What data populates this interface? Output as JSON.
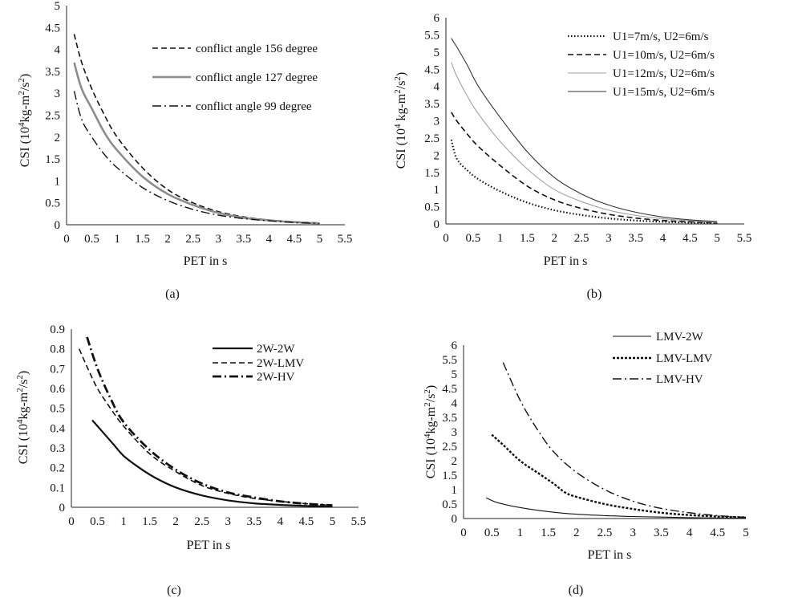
{
  "chart_data": [
    {
      "type": "line",
      "panel_label": "(a)",
      "xlabel": "PET in s",
      "ylabel": "CSI (10⁴kg-m²/s²)",
      "xlim": [
        0,
        5.5
      ],
      "ylim": [
        0,
        5
      ],
      "xticks": [
        "0",
        "0.5",
        "1",
        "1.5",
        "2",
        "2.5",
        "3",
        "3.5",
        "4",
        "4.5",
        "5",
        "5.5"
      ],
      "yticks": [
        "0",
        "0.5",
        "1",
        "1.5",
        "2",
        "2.5",
        "3",
        "3.5",
        "4",
        "4.5",
        "5"
      ],
      "grid": false,
      "legend_position": "top-right",
      "series": [
        {
          "name": "conflict angle 156 degree",
          "style": "dashed",
          "color": "#111111",
          "x": [
            0.15,
            0.3,
            0.5,
            0.75,
            1,
            1.5,
            2,
            2.5,
            3,
            3.5,
            4,
            4.5,
            5
          ],
          "y": [
            4.35,
            3.7,
            3.1,
            2.5,
            2.0,
            1.3,
            0.8,
            0.5,
            0.3,
            0.18,
            0.11,
            0.07,
            0.04
          ]
        },
        {
          "name": "conflict angle 127 degree",
          "style": "solid-gray",
          "color": "#8c8c8c",
          "x": [
            0.15,
            0.3,
            0.5,
            0.75,
            1,
            1.5,
            2,
            2.5,
            3,
            3.5,
            4,
            4.5,
            5
          ],
          "y": [
            3.7,
            3.1,
            2.65,
            2.1,
            1.7,
            1.1,
            0.7,
            0.45,
            0.27,
            0.16,
            0.1,
            0.06,
            0.03
          ]
        },
        {
          "name": "conflict angle 99 degree",
          "style": "dashdot",
          "color": "#111111",
          "x": [
            0.15,
            0.3,
            0.5,
            0.75,
            1,
            1.5,
            2,
            2.5,
            3,
            3.5,
            4,
            4.5,
            5
          ],
          "y": [
            3.05,
            2.4,
            2.0,
            1.6,
            1.3,
            0.85,
            0.55,
            0.35,
            0.22,
            0.14,
            0.09,
            0.05,
            0.03
          ]
        }
      ]
    },
    {
      "type": "line",
      "panel_label": "(b)",
      "xlabel": "PET in s",
      "ylabel": "CSI (10⁴ kg-m²/s²)",
      "xlim": [
        0,
        5.5
      ],
      "ylim": [
        0,
        6
      ],
      "xticks": [
        "0",
        "0.5",
        "1",
        "1.5",
        "2",
        "2.5",
        "3",
        "3.5",
        "4",
        "4.5",
        "5",
        "5.5"
      ],
      "yticks": [
        "0",
        "0.5",
        "1",
        "1.5",
        "2",
        "2.5",
        "3",
        "3.5",
        "4",
        "4.5",
        "5",
        "5.5",
        "6"
      ],
      "grid": false,
      "legend_position": "top-right",
      "series": [
        {
          "name": "U1=7m/s, U2=6m/s",
          "style": "dotted",
          "color": "#111111",
          "x": [
            0.1,
            0.2,
            0.4,
            0.6,
            1,
            1.5,
            2,
            2.5,
            3,
            3.5,
            4,
            4.5,
            5
          ],
          "y": [
            2.45,
            1.9,
            1.55,
            1.3,
            0.95,
            0.62,
            0.4,
            0.26,
            0.16,
            0.1,
            0.06,
            0.04,
            0.02
          ]
        },
        {
          "name": "U1=10m/s, U2=6m/s",
          "style": "dashed",
          "color": "#111111",
          "x": [
            0.1,
            0.2,
            0.4,
            0.6,
            1,
            1.5,
            2,
            2.5,
            3,
            3.5,
            4,
            4.5,
            5
          ],
          "y": [
            3.25,
            3.0,
            2.6,
            2.25,
            1.7,
            1.1,
            0.7,
            0.45,
            0.28,
            0.17,
            0.1,
            0.06,
            0.03
          ]
        },
        {
          "name": "U1=12m/s, U2=6m/s",
          "style": "solid-light",
          "color": "#a0a0a0",
          "x": [
            0.1,
            0.2,
            0.4,
            0.6,
            1,
            1.5,
            2,
            2.5,
            3,
            3.5,
            4,
            4.5,
            5
          ],
          "y": [
            4.7,
            4.3,
            3.7,
            3.2,
            2.4,
            1.6,
            1.0,
            0.65,
            0.4,
            0.25,
            0.15,
            0.09,
            0.05
          ]
        },
        {
          "name": "U1=15m/s, U2=6m/s",
          "style": "solid-thin",
          "color": "#333333",
          "x": [
            0.1,
            0.2,
            0.4,
            0.6,
            1,
            1.5,
            2,
            2.5,
            3,
            3.5,
            4,
            4.5,
            5
          ],
          "y": [
            5.4,
            5.15,
            4.6,
            4.0,
            3.1,
            2.1,
            1.35,
            0.87,
            0.55,
            0.34,
            0.2,
            0.12,
            0.07
          ]
        }
      ]
    },
    {
      "type": "line",
      "panel_label": "(c)",
      "xlabel": "PET in s",
      "ylabel": "CSI (10⁴kg-m²/s²)",
      "xlim": [
        0,
        5.5
      ],
      "ylim": [
        0,
        0.9
      ],
      "xticks": [
        "0",
        "0.5",
        "1",
        "1.5",
        "2",
        "2.5",
        "3",
        "3.5",
        "4",
        "4.5",
        "5",
        "5.5"
      ],
      "yticks": [
        "0",
        "0.1",
        "0.2",
        "0.3",
        "0.4",
        "0.5",
        "0.6",
        "0.7",
        "0.8",
        "0.9"
      ],
      "grid": false,
      "legend_position": "top-right",
      "series": [
        {
          "name": "2W-2W",
          "style": "solid-thick",
          "color": "#111111",
          "x": [
            0.4,
            0.6,
            0.8,
            1,
            1.3,
            1.6,
            2,
            2.5,
            3,
            3.5,
            4,
            4.5,
            5
          ],
          "y": [
            0.44,
            0.38,
            0.32,
            0.26,
            0.2,
            0.15,
            0.1,
            0.06,
            0.035,
            0.02,
            0.012,
            0.007,
            0.004
          ]
        },
        {
          "name": "2W-LMV",
          "style": "dashed",
          "color": "#111111",
          "x": [
            0.15,
            0.3,
            0.5,
            0.75,
            1,
            1.5,
            2,
            2.5,
            3,
            3.5,
            4,
            4.5,
            5
          ],
          "y": [
            0.8,
            0.71,
            0.6,
            0.5,
            0.41,
            0.27,
            0.18,
            0.11,
            0.07,
            0.045,
            0.03,
            0.018,
            0.01
          ]
        },
        {
          "name": "2W-HV",
          "style": "dashdot-thick",
          "color": "#111111",
          "x": [
            0.3,
            0.5,
            0.75,
            1,
            1.5,
            2,
            2.5,
            3,
            3.5,
            4,
            4.5,
            5
          ],
          "y": [
            0.86,
            0.7,
            0.55,
            0.43,
            0.29,
            0.19,
            0.12,
            0.075,
            0.05,
            0.03,
            0.018,
            0.01
          ]
        }
      ]
    },
    {
      "type": "line",
      "panel_label": "(d)",
      "xlabel": "PET in s",
      "ylabel": "CSI (10⁴kg-m²/s²)",
      "xlim": [
        0,
        5
      ],
      "ylim": [
        0,
        6
      ],
      "xticks": [
        "0",
        "0.5",
        "1",
        "1.5",
        "2",
        "2.5",
        "3",
        "3.5",
        "4",
        "4.5",
        "5"
      ],
      "yticks": [
        "0",
        "0.5",
        "1",
        "1.5",
        "2",
        "2.5",
        "3",
        "3.5",
        "4",
        "4.5",
        "5",
        "5.5",
        "6"
      ],
      "grid": false,
      "legend_position": "top-right",
      "series": [
        {
          "name": "LMV-2W",
          "style": "solid-thin",
          "color": "#111111",
          "x": [
            0.4,
            0.6,
            1,
            1.5,
            2,
            2.5,
            3,
            3.5,
            4,
            4.5,
            5
          ],
          "y": [
            0.72,
            0.55,
            0.38,
            0.24,
            0.15,
            0.1,
            0.07,
            0.05,
            0.03,
            0.02,
            0.01
          ]
        },
        {
          "name": "LMV-LMV",
          "style": "dotted-thick",
          "color": "#111111",
          "x": [
            0.5,
            0.7,
            1,
            1.3,
            1.6,
            1.8,
            2,
            2.5,
            3,
            3.5,
            4,
            4.5,
            5
          ],
          "y": [
            2.9,
            2.55,
            2.0,
            1.6,
            1.2,
            0.9,
            0.75,
            0.5,
            0.33,
            0.2,
            0.12,
            0.07,
            0.04
          ]
        },
        {
          "name": "LMV-HV",
          "style": "dashdot",
          "color": "#111111",
          "x": [
            0.7,
            1,
            1.3,
            1.6,
            2,
            2.5,
            3,
            3.5,
            4,
            4.5,
            5
          ],
          "y": [
            5.4,
            4.1,
            3.1,
            2.3,
            1.6,
            1.0,
            0.6,
            0.35,
            0.2,
            0.1,
            0.04
          ]
        }
      ]
    }
  ]
}
